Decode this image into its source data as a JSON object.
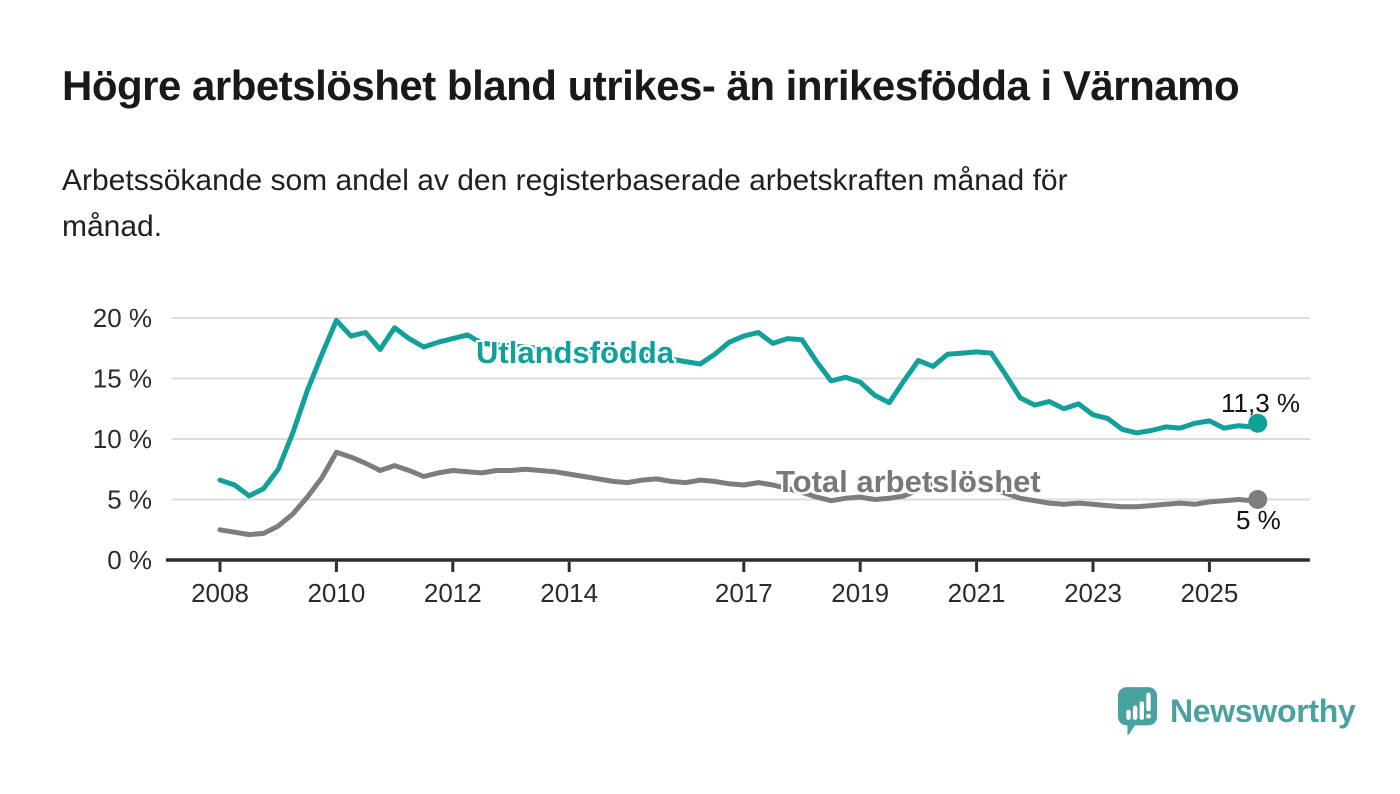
{
  "header": {
    "title": "Högre arbetslöshet bland utrikes- än inrikesfödda i Värnamo",
    "subtitle_line1": "Arbetssökande som andel av den registerbaserade arbetskraften månad för",
    "subtitle_line2": "månad."
  },
  "colors": {
    "foreign_born_line": "#12a19a",
    "total_line": "#7d7d7f",
    "total_label_text": "#77787a",
    "grid": "#dcdcdc",
    "axis": "#2d2d2d",
    "tick_text": "#2b2b2b",
    "value_label_text": "#111111",
    "brand_teal": "#4aa2a0",
    "background": "#ffffff"
  },
  "chart_data": {
    "type": "line",
    "title": "",
    "xlabel": "",
    "ylabel": "",
    "grid": true,
    "legend_position": "inline-labels-on-lines",
    "ylim": [
      0,
      21
    ],
    "xlim": [
      2008,
      2026.7
    ],
    "y_ticks": [
      {
        "value": 0,
        "label": "0 %"
      },
      {
        "value": 5,
        "label": "5 %"
      },
      {
        "value": 10,
        "label": "10 %"
      },
      {
        "value": 15,
        "label": "15 %"
      },
      {
        "value": 20,
        "label": "20 %"
      }
    ],
    "x_ticks": [
      {
        "value": 2008,
        "label": "2008"
      },
      {
        "value": 2010,
        "label": "2010"
      },
      {
        "value": 2012,
        "label": "2012"
      },
      {
        "value": 2014,
        "label": "2014"
      },
      {
        "value": 2017,
        "label": "2017"
      },
      {
        "value": 2019,
        "label": "2019"
      },
      {
        "value": 2021,
        "label": "2021"
      },
      {
        "value": 2023,
        "label": "2023"
      },
      {
        "value": 2025,
        "label": "2025"
      }
    ],
    "x": [
      2008.0,
      2008.25,
      2008.5,
      2008.75,
      2009.0,
      2009.25,
      2009.5,
      2009.75,
      2010.0,
      2010.25,
      2010.5,
      2010.75,
      2011.0,
      2011.25,
      2011.5,
      2011.75,
      2012.0,
      2012.25,
      2012.5,
      2012.75,
      2013.0,
      2013.25,
      2013.5,
      2013.75,
      2014.0,
      2014.25,
      2014.5,
      2014.75,
      2015.0,
      2015.25,
      2015.5,
      2015.75,
      2016.0,
      2016.25,
      2016.5,
      2016.75,
      2017.0,
      2017.25,
      2017.5,
      2017.75,
      2018.0,
      2018.25,
      2018.5,
      2018.75,
      2019.0,
      2019.25,
      2019.5,
      2019.75,
      2020.0,
      2020.25,
      2020.5,
      2020.75,
      2021.0,
      2021.25,
      2021.5,
      2021.75,
      2022.0,
      2022.25,
      2022.5,
      2022.75,
      2023.0,
      2023.25,
      2023.5,
      2023.75,
      2024.0,
      2024.25,
      2024.5,
      2024.75,
      2025.0,
      2025.25,
      2025.5,
      2025.75,
      2025.83
    ],
    "series": [
      {
        "name": "Utlandsfödda",
        "color": "#12a19a",
        "end_label": "11,3 %",
        "end_value": 11.3,
        "values": [
          6.6,
          6.2,
          5.3,
          5.9,
          7.5,
          10.5,
          14.0,
          17.0,
          19.8,
          18.5,
          18.8,
          17.4,
          19.2,
          18.3,
          17.6,
          18.0,
          18.3,
          18.6,
          17.9,
          17.8,
          17.7,
          17.6,
          17.5,
          17.4,
          17.3,
          17.2,
          17.2,
          17.1,
          17.1,
          16.9,
          16.8,
          16.6,
          16.4,
          16.2,
          17.0,
          18.0,
          18.5,
          18.8,
          17.9,
          18.3,
          18.2,
          16.4,
          14.8,
          15.1,
          14.7,
          13.6,
          13.0,
          14.8,
          16.5,
          16.0,
          17.0,
          17.1,
          17.2,
          17.1,
          15.3,
          13.4,
          12.8,
          13.1,
          12.5,
          12.9,
          12.0,
          11.7,
          10.8,
          10.5,
          10.7,
          11.0,
          10.9,
          11.3,
          11.5,
          10.9,
          11.1,
          11.0,
          11.3
        ]
      },
      {
        "name": "Total arbetslöshet",
        "color": "#7d7d7f",
        "end_label": "5 %",
        "end_value": 5.0,
        "values": [
          2.5,
          2.3,
          2.1,
          2.2,
          2.8,
          3.8,
          5.2,
          6.8,
          8.9,
          8.5,
          8.0,
          7.4,
          7.8,
          7.4,
          6.9,
          7.2,
          7.4,
          7.3,
          7.2,
          7.4,
          7.4,
          7.5,
          7.4,
          7.3,
          7.1,
          6.9,
          6.7,
          6.5,
          6.4,
          6.6,
          6.7,
          6.5,
          6.4,
          6.6,
          6.5,
          6.3,
          6.2,
          6.4,
          6.2,
          5.9,
          5.6,
          5.2,
          4.9,
          5.1,
          5.2,
          5.0,
          5.1,
          5.3,
          5.8,
          6.3,
          6.4,
          6.2,
          6.1,
          5.9,
          5.5,
          5.1,
          4.9,
          4.7,
          4.6,
          4.7,
          4.6,
          4.5,
          4.4,
          4.4,
          4.5,
          4.6,
          4.7,
          4.6,
          4.8,
          4.9,
          5.0,
          4.9,
          5.0
        ]
      }
    ]
  },
  "footer": {
    "brand": "Newsworthy",
    "logo_icon": "bar-chart-speech-bubble"
  }
}
